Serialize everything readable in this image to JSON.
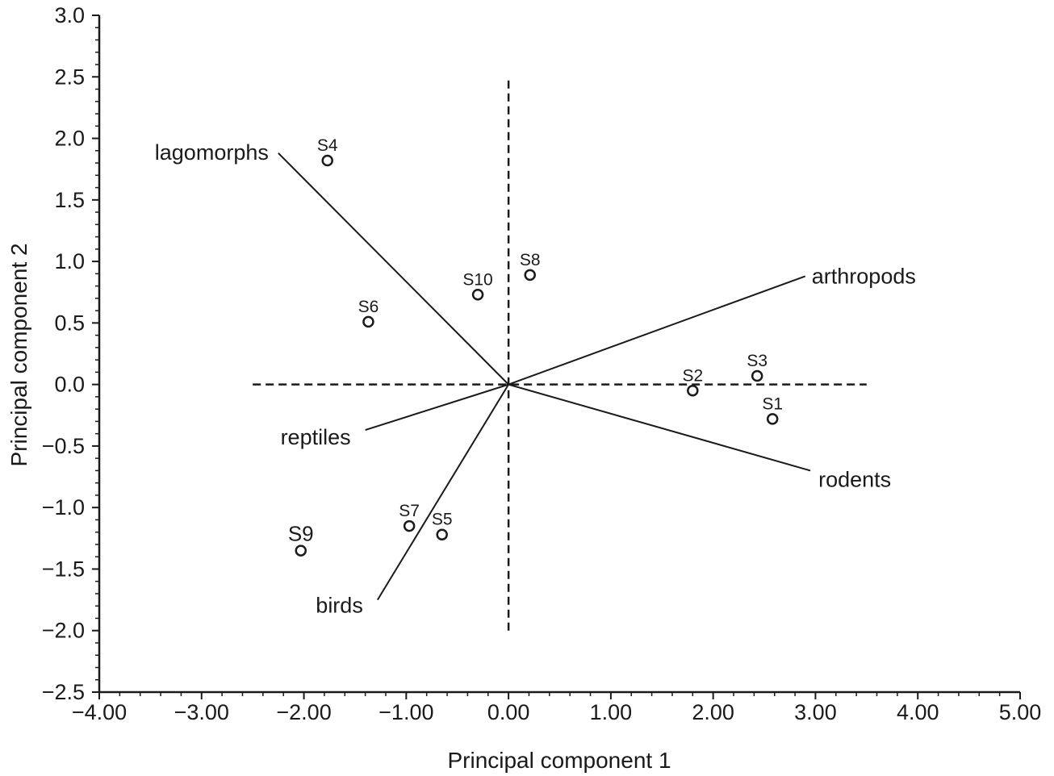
{
  "chart_data": {
    "type": "scatter",
    "title": "",
    "xlabel": "Principal component 1",
    "ylabel": "Principal component 2",
    "xlim": [
      -4.0,
      5.0
    ],
    "ylim": [
      -2.5,
      3.0
    ],
    "xticks": [
      -4,
      -3,
      -2,
      -1,
      0,
      1,
      2,
      3,
      4,
      5
    ],
    "xtick_labels": [
      "−4.00",
      "−3.00",
      "−2.00",
      "−1.00",
      "0.00",
      "1.00",
      "2.00",
      "3.00",
      "4.00",
      "5.00"
    ],
    "yticks": [
      3.0,
      2.5,
      2.0,
      1.5,
      1.0,
      0.5,
      0.0,
      -0.5,
      -1.0,
      -1.5,
      -2.0,
      -2.5
    ],
    "ytick_labels": [
      "3.0",
      "2.5",
      "2.0",
      "1.5",
      "1.0",
      "0.5",
      "0.0",
      "−0.5",
      "−1.0",
      "−1.5",
      "−2.0",
      "−2.5"
    ],
    "grid": false,
    "reference_lines": {
      "horizontal": {
        "y": 0.0,
        "x_range": [
          -2.5,
          3.5
        ]
      },
      "vertical": {
        "x": 0.0,
        "y_range": [
          -2.0,
          2.5
        ]
      }
    },
    "points": [
      {
        "label": "S1",
        "x": 2.58,
        "y": -0.28
      },
      {
        "label": "S2",
        "x": 1.8,
        "y": -0.05
      },
      {
        "label": "S3",
        "x": 2.43,
        "y": 0.07
      },
      {
        "label": "S4",
        "x": -1.77,
        "y": 1.82
      },
      {
        "label": "S5",
        "x": -0.65,
        "y": -1.22
      },
      {
        "label": "S6",
        "x": -1.37,
        "y": 0.51
      },
      {
        "label": "S7",
        "x": -0.97,
        "y": -1.15
      },
      {
        "label": "S8",
        "x": 0.21,
        "y": 0.89
      },
      {
        "label": "S9",
        "x": -2.03,
        "y": -1.35
      },
      {
        "label": "S10",
        "x": -0.3,
        "y": 0.73
      }
    ],
    "vectors": [
      {
        "label": "lagomorphs",
        "x": -2.25,
        "y": 1.88
      },
      {
        "label": "arthropods",
        "x": 2.9,
        "y": 0.88
      },
      {
        "label": "rodents",
        "x": 2.95,
        "y": -0.7
      },
      {
        "label": "reptiles",
        "x": -1.4,
        "y": -0.37
      },
      {
        "label": "birds",
        "x": -1.28,
        "y": -1.75
      }
    ],
    "colors": {
      "ink": "#1a1a1a",
      "background": "#ffffff"
    }
  }
}
